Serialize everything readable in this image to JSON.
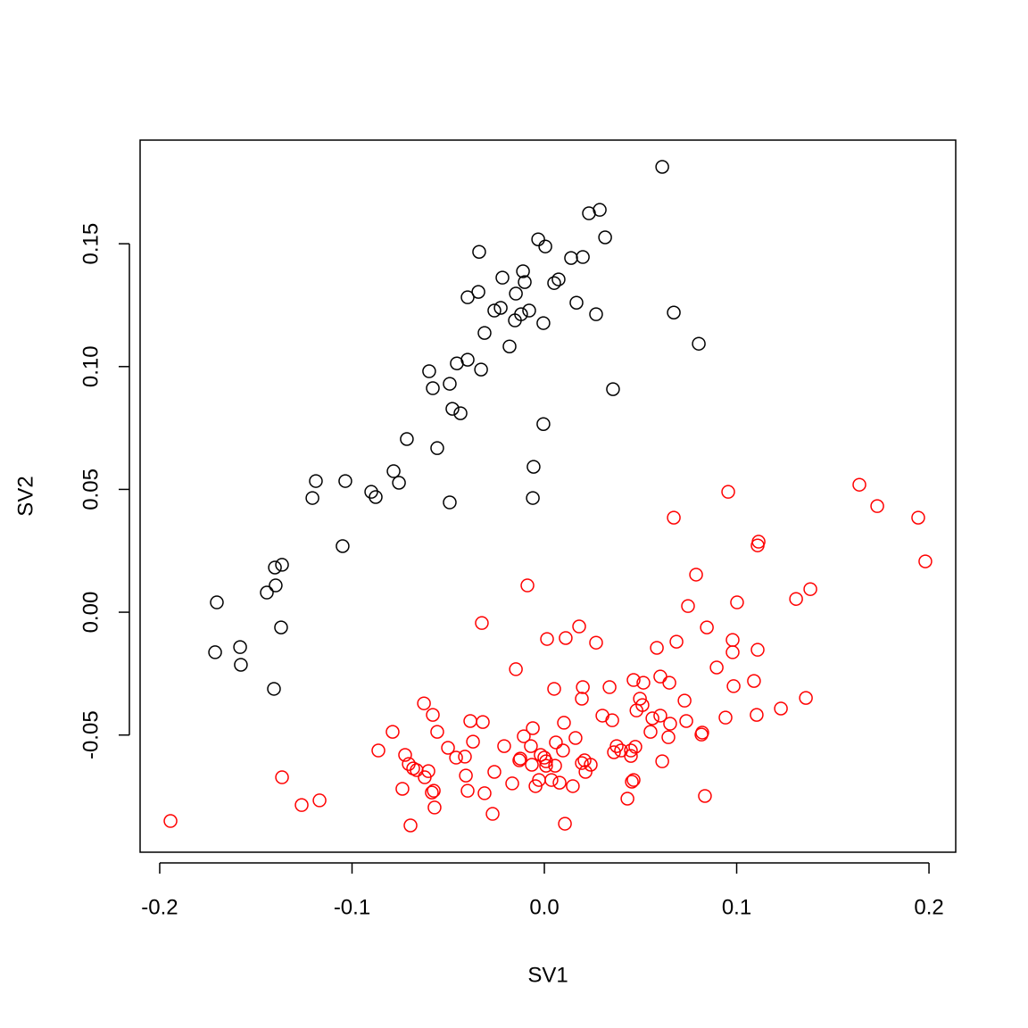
{
  "chart_data": {
    "type": "scatter",
    "xlabel": "SV1",
    "ylabel": "SV2",
    "xlim": [
      -0.2102,
      0.2139
    ],
    "ylim": [
      -0.0977,
      0.1922
    ],
    "xticks": [
      -0.2,
      -0.1,
      {
        "value": 0,
        "label": "0.0"
      },
      0.1,
      0.2
    ],
    "yticks": [
      -0.05,
      {
        "value": 0,
        "label": "0.00"
      },
      0.05,
      {
        "value": 0.1,
        "label": "0.10"
      },
      0.15
    ],
    "series": [
      {
        "color": "#000000",
        "x": [
          0.0613,
          0.0288,
          0.0232,
          0.0316,
          -0.0032,
          0.0005,
          -0.0339,
          0.02,
          0.0139,
          -0.0111,
          -0.0218,
          0.0074,
          0.0051,
          -0.0102,
          -0.0343,
          -0.0148,
          -0.0399,
          0.0167,
          -0.0227,
          -0.026,
          -0.0079,
          -0.0121,
          0.0269,
          0.0673,
          -0.0153,
          -0.0005,
          -0.0311,
          -0.0181,
          0.0803,
          -0.0399,
          -0.0455,
          -0.0329,
          -0.0599,
          -0.0492,
          -0.058,
          0.0357,
          -0.0478,
          -0.0436,
          -0.0005,
          -0.0715,
          -0.0557,
          -0.0784,
          -0.0056,
          -0.1188,
          -0.1035,
          -0.0756,
          -0.09,
          -0.0877,
          -0.1206,
          -0.006,
          -0.0492,
          -0.1049,
          -0.1364,
          -0.1401,
          -0.1397,
          -0.1443,
          -0.1703,
          -0.1369,
          -0.1582,
          -0.1712,
          -0.1578,
          -0.1406
        ],
        "y": [
          0.1813,
          0.1638,
          0.1624,
          0.1526,
          0.1518,
          0.1489,
          0.1467,
          0.1446,
          0.1442,
          0.1388,
          0.1362,
          0.1355,
          0.134,
          0.1344,
          0.1304,
          0.1297,
          0.1282,
          0.126,
          0.1239,
          0.1228,
          0.1228,
          0.1213,
          0.1213,
          0.122,
          0.1188,
          0.1177,
          0.1137,
          0.1082,
          0.1093,
          0.1028,
          0.1013,
          0.0988,
          0.0981,
          0.093,
          0.0912,
          0.0908,
          0.0828,
          0.081,
          0.0766,
          0.0705,
          0.0668,
          0.0574,
          0.0592,
          0.0534,
          0.0534,
          0.0527,
          0.049,
          0.0469,
          0.0465,
          0.0465,
          0.0447,
          0.0269,
          0.0193,
          0.0182,
          0.0109,
          0.008,
          0.004,
          -0.0062,
          -0.0142,
          -0.0163,
          -0.0214,
          -0.0312
        ]
      },
      {
        "color": "#ff0000",
        "x": [
          -0.1944,
          0.1638,
          0.1731,
          0.1944,
          0.1981,
          0.0956,
          0.0673,
          0.1114,
          0.1109,
          0.0789,
          -0.0088,
          0.1383,
          0.1309,
          0.1002,
          0.0747,
          -0.0325,
          0.0181,
          0.0845,
          0.0014,
          0.0111,
          0.0979,
          0.0269,
          0.0687,
          0.0585,
          0.1109,
          0.0979,
          -0.0148,
          0.0896,
          0.0603,
          0.0464,
          0.109,
          0.065,
          0.0515,
          0.0051,
          0.02,
          0.0339,
          0.0984,
          0.0497,
          0.0195,
          0.0729,
          0.136,
          -0.0626,
          0.0479,
          0.123,
          0.051,
          -0.058,
          0.0603,
          0.1104,
          0.0942,
          0.0302,
          0.0562,
          0.0738,
          0.0353,
          -0.0385,
          -0.032,
          0.0102,
          0.0654,
          0.0821,
          0.0817,
          -0.0789,
          0.0552,
          -0.0557,
          0.0645,
          -0.0107,
          -0.006,
          0.0162,
          -0.0371,
          0.006,
          0.0376,
          -0.0209,
          -0.007,
          0.0473,
          -0.0501,
          0.0399,
          0.045,
          0.0097,
          -0.0863,
          0.0362,
          -0.0724,
          -0.0413,
          0.045,
          -0.0459,
          -0.0019,
          0.0,
          -0.0125,
          -0.013,
          0.0009,
          0.0209,
          0.0613,
          -0.0065,
          0.0009,
          0.0195,
          0.0241,
          0.0056,
          -0.0705,
          -0.0682,
          -0.0664,
          -0.0603,
          -0.026,
          0.0214,
          -0.0408,
          -0.0622,
          -0.1364,
          -0.0028,
          0.0037,
          0.0464,
          -0.0167,
          0.0455,
          0.0079,
          -0.0046,
          0.0148,
          -0.0738,
          -0.0399,
          -0.0575,
          -0.0585,
          -0.0311,
          0.0835,
          0.0432,
          -0.1169,
          -0.1262,
          -0.0571,
          -0.0269,
          -0.0696,
          0.0107
        ],
        "y": [
          -0.085,
          0.0519,
          0.0432,
          0.0385,
          0.0207,
          0.049,
          0.0385,
          0.0287,
          0.0272,
          0.0153,
          0.0109,
          0.0094,
          0.0054,
          0.004,
          0.0025,
          -0.0044,
          -0.0058,
          -0.0062,
          -0.0109,
          -0.0105,
          -0.0113,
          -0.0124,
          -0.012,
          -0.0145,
          -0.0153,
          -0.0163,
          -0.0232,
          -0.0225,
          -0.0262,
          -0.0276,
          -0.028,
          -0.0287,
          -0.0287,
          -0.0312,
          -0.0305,
          -0.0305,
          -0.0301,
          -0.0352,
          -0.0352,
          -0.036,
          -0.0349,
          -0.0371,
          -0.04,
          -0.0392,
          -0.0378,
          -0.0418,
          -0.0421,
          -0.0418,
          -0.0429,
          -0.0421,
          -0.0432,
          -0.0443,
          -0.044,
          -0.0443,
          -0.0447,
          -0.045,
          -0.0454,
          -0.049,
          -0.0498,
          -0.0487,
          -0.0487,
          -0.0487,
          -0.0509,
          -0.0505,
          -0.0472,
          -0.0512,
          -0.0527,
          -0.053,
          -0.0545,
          -0.0545,
          -0.0545,
          -0.0548,
          -0.0552,
          -0.0563,
          -0.0563,
          -0.0563,
          -0.0563,
          -0.057,
          -0.0581,
          -0.0588,
          -0.0585,
          -0.0592,
          -0.0581,
          -0.0592,
          -0.0596,
          -0.0603,
          -0.0607,
          -0.0603,
          -0.0607,
          -0.0621,
          -0.0625,
          -0.0614,
          -0.0621,
          -0.0625,
          -0.0618,
          -0.0636,
          -0.0643,
          -0.0647,
          -0.065,
          -0.065,
          -0.0665,
          -0.0672,
          -0.0672,
          -0.0683,
          -0.0683,
          -0.0683,
          -0.0697,
          -0.069,
          -0.0694,
          -0.0708,
          -0.0708,
          -0.0719,
          -0.0727,
          -0.0727,
          -0.0734,
          -0.0737,
          -0.0748,
          -0.0759,
          -0.0766,
          -0.0785,
          -0.0795,
          -0.0821,
          -0.0868,
          -0.0861
        ]
      }
    ]
  }
}
